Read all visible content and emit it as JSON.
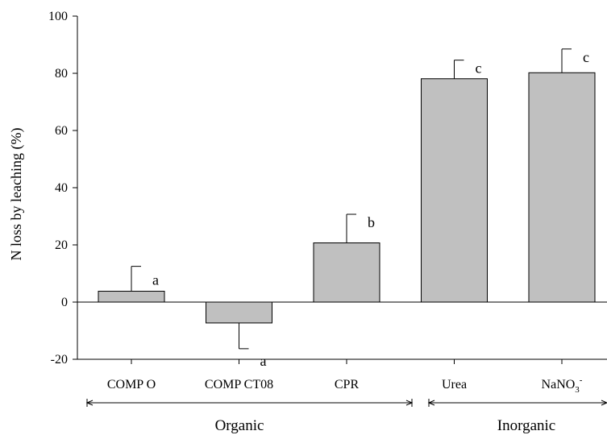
{
  "chart_data": {
    "type": "bar",
    "categories": [
      "COMP O",
      "COMP CT08",
      "CPR",
      "Urea",
      "NaNO3-"
    ],
    "category_display": [
      {
        "base": "COMP O",
        "sub": "",
        "sup": ""
      },
      {
        "base": "COMP CT08",
        "sub": "",
        "sup": ""
      },
      {
        "base": "CPR",
        "sub": "",
        "sup": ""
      },
      {
        "base": "Urea",
        "sub": "",
        "sup": ""
      },
      {
        "base": "NaNO",
        "sub": "3",
        "sup": "-"
      }
    ],
    "values": [
      3.8,
      -7.3,
      20.7,
      78.1,
      80.2
    ],
    "errors": [
      8.7,
      9.0,
      10.0,
      6.5,
      8.3
    ],
    "significance": [
      "a",
      "a",
      "b",
      "c",
      "c"
    ],
    "ylabel": "N loss by leaching (%)",
    "ylim": [
      -20,
      100
    ],
    "yticks": [
      -20,
      0,
      20,
      40,
      60,
      80,
      100
    ],
    "groups": [
      {
        "label": "Organic",
        "categories": [
          "COMP O",
          "COMP CT08",
          "CPR"
        ]
      },
      {
        "label": "Inorganic",
        "categories": [
          "Urea",
          "NaNO3-"
        ]
      }
    ],
    "colors": {
      "bar_fill": "#c0c0c0",
      "bar_stroke": "#000000"
    },
    "grid": false
  }
}
